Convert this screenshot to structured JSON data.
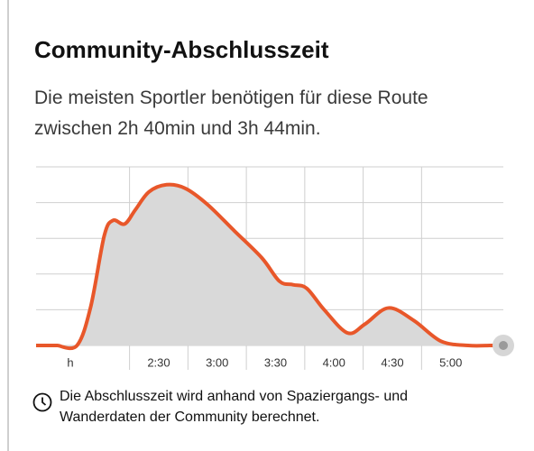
{
  "chart_data": {
    "type": "area",
    "title": "Community-Abschlusszeit",
    "subtitle": "Die meisten Sportler benötigen für diese Route zwischen 2h 40min und 3h 44min.",
    "x_label": "h",
    "footnote": "Die Abschlusszeit wird anhand von Spaziergangs- und Wanderdaten der Community berechnet.",
    "x": [
      113,
      123,
      130,
      137,
      141.5,
      147.5,
      153,
      160,
      169,
      178.6,
      190,
      204,
      218,
      227,
      234,
      241,
      250,
      262,
      271,
      283,
      296,
      310,
      324,
      335
    ],
    "values": [
      0,
      0,
      1.07,
      3.07,
      3.5,
      3.4,
      3.8,
      4.3,
      4.5,
      4.4,
      3.95,
      3.2,
      2.45,
      1.8,
      1.7,
      1.6,
      1.0,
      0.35,
      0.6,
      1.05,
      0.7,
      0.12,
      0,
      0
    ],
    "color": "#e8572a",
    "fill": "#d9d9d9",
    "xlim": [
      102,
      342
    ],
    "ylim": [
      -0.05,
      5
    ],
    "xticks": [
      {
        "value": 150,
        "label": "2:30"
      },
      {
        "value": 180,
        "label": "3:00"
      },
      {
        "value": 210,
        "label": "3:30"
      },
      {
        "value": 240,
        "label": "4:00"
      },
      {
        "value": 270,
        "label": "4:30"
      },
      {
        "value": 300,
        "label": "5:00"
      }
    ],
    "yticks": [
      0,
      1,
      2,
      3,
      4,
      5
    ],
    "grid": true
  }
}
